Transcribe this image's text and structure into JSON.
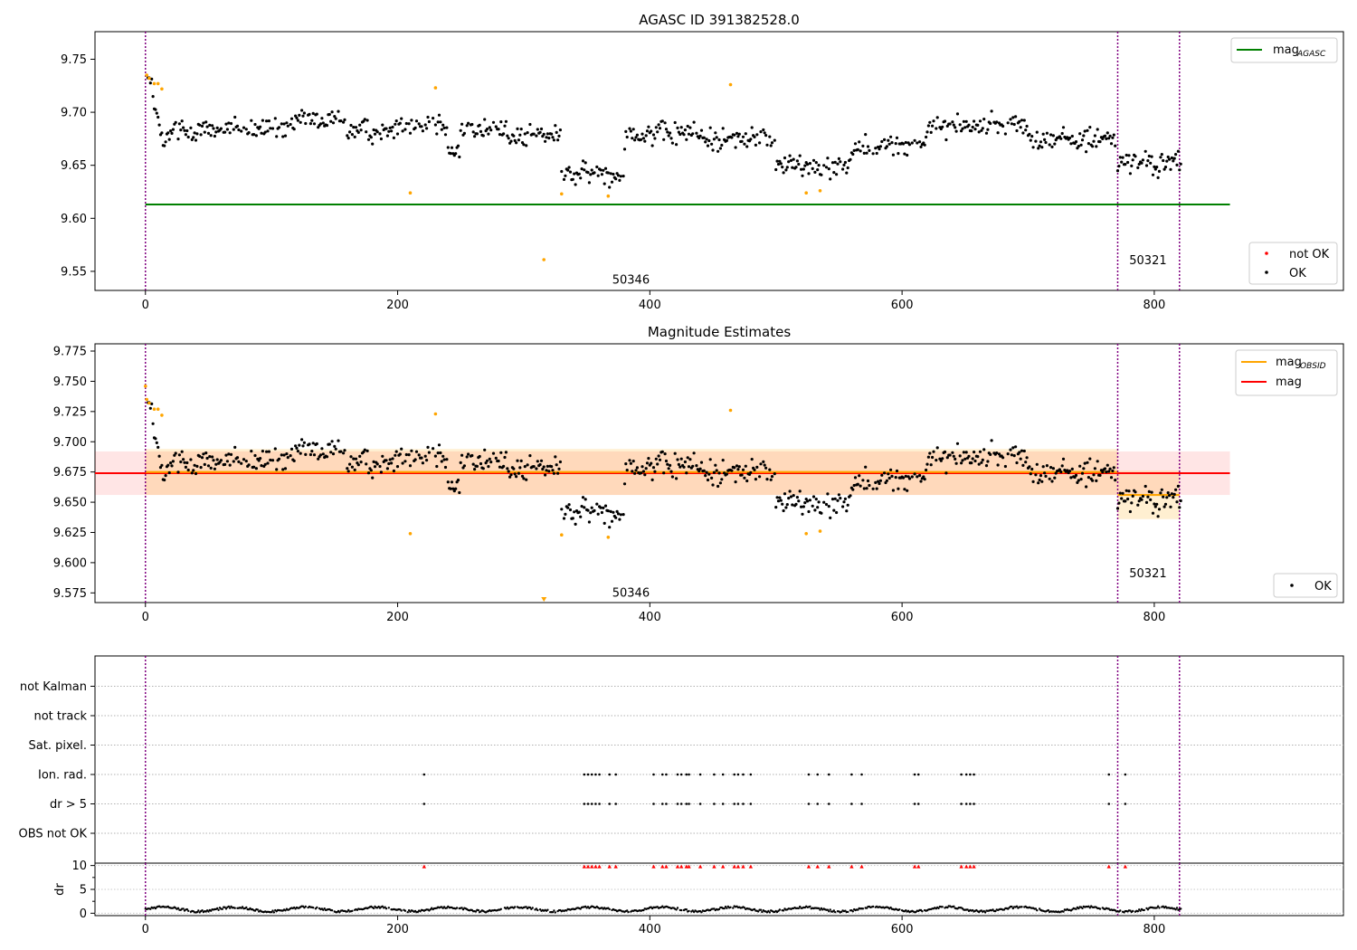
{
  "chart_data": [
    {
      "type": "scatter",
      "title": "AGASC ID 391382528.0",
      "xlim": [
        -40,
        950
      ],
      "ylim": [
        9.532,
        9.776
      ],
      "xticks": [
        0,
        200,
        400,
        600,
        800
      ],
      "yticks": [
        9.55,
        9.6,
        9.65,
        9.7,
        9.75
      ],
      "ytick_labels": [
        "9.55",
        "9.60",
        "9.65",
        "9.70",
        "9.75"
      ],
      "obsid_boundaries": [
        0,
        771,
        820
      ],
      "obsid_labels": [
        {
          "text": "50346",
          "x": 385,
          "y": 9.542
        },
        {
          "text": "50321",
          "x": 795,
          "y": 9.56
        }
      ],
      "agasc_mag": 9.613,
      "agasc_range": [
        0,
        860
      ],
      "legend_lines": [
        {
          "label": "mag",
          "sub": "AGASC",
          "color": "#008000"
        }
      ],
      "legend_markers": [
        {
          "label": "not OK",
          "color": "#ff0000"
        },
        {
          "label": "OK",
          "color": "#000000"
        }
      ],
      "series": [
        {
          "name": "OK",
          "color": "#000000"
        },
        {
          "name": "flagged",
          "color": "#ffa500"
        }
      ]
    },
    {
      "type": "scatter",
      "title": "Magnitude Estimates",
      "xlim": [
        -40,
        950
      ],
      "ylim": [
        9.567,
        9.781
      ],
      "xticks": [
        0,
        200,
        400,
        600,
        800
      ],
      "yticks": [
        9.575,
        9.6,
        9.625,
        9.65,
        9.675,
        9.7,
        9.725,
        9.75,
        9.775
      ],
      "ytick_labels": [
        "9.575",
        "9.600",
        "9.625",
        "9.650",
        "9.675",
        "9.700",
        "9.725",
        "9.750",
        "9.775"
      ],
      "obsid_boundaries": [
        0,
        771,
        820
      ],
      "obsid_labels": [
        {
          "text": "50346",
          "x": 385,
          "y": 9.575
        },
        {
          "text": "50321",
          "x": 795,
          "y": 9.591
        }
      ],
      "mag": 9.674,
      "mag_band": [
        9.656,
        9.692
      ],
      "mag_range": [
        -40,
        860
      ],
      "obsid_mags": [
        {
          "x": [
            0,
            771
          ],
          "mag": 9.675,
          "band": [
            9.656,
            9.694
          ]
        },
        {
          "x": [
            771,
            820
          ],
          "mag": 9.656,
          "band": [
            9.636,
            9.676
          ]
        }
      ],
      "legend_lines": [
        {
          "label": "mag",
          "sub": "OBSID",
          "color": "#ffa500"
        },
        {
          "label": "mag",
          "sub": "",
          "color": "#ff0000"
        }
      ],
      "legend_markers": [
        {
          "label": "OK",
          "color": "#000000"
        }
      ]
    },
    {
      "type": "scatter",
      "title": "",
      "xlim": [
        -40,
        950
      ],
      "xticks": [
        0,
        200,
        400,
        600,
        800
      ],
      "flag_labels": [
        "not Kalman",
        "not track",
        "Sat. pixel.",
        "Ion. rad.",
        "dr > 5",
        "OBS not OK"
      ],
      "flag_x": [
        221,
        348,
        351,
        354,
        357,
        360,
        368,
        373,
        403,
        410,
        413,
        422,
        425,
        429,
        431,
        440,
        451,
        458,
        467,
        470,
        474,
        480,
        526,
        533,
        542,
        560,
        568,
        610,
        613,
        647,
        651,
        654,
        657,
        764,
        777
      ],
      "dr_ylabel": "dr",
      "dr_ylim": [
        -0.5,
        10.5
      ],
      "dr_yticks": [
        0,
        5,
        10
      ],
      "dr_ytick_labels": [
        "0",
        "5",
        "10"
      ],
      "obsid_boundaries": [
        0,
        771,
        820
      ]
    }
  ]
}
